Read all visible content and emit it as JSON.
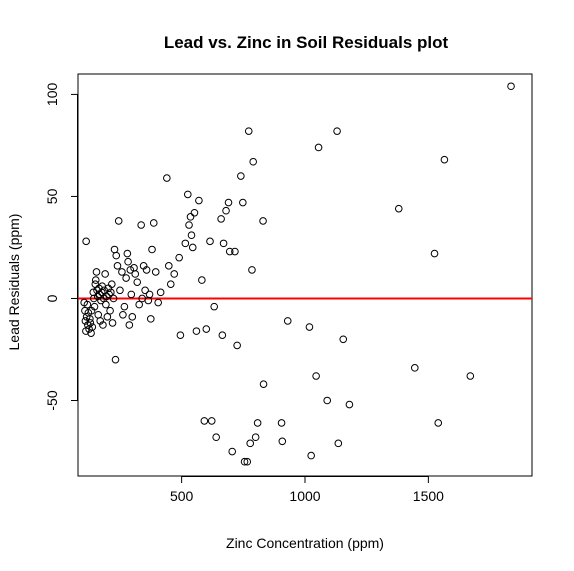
{
  "chart_data": {
    "type": "scatter",
    "title": "Lead vs. Zinc in Soil Residuals plot",
    "xlabel": "Zinc Concentration (ppm)",
    "ylabel": "Lead Residuals (ppm)",
    "xlim": [
      80,
      1920
    ],
    "ylim": [
      -87,
      110
    ],
    "xticks": [
      500,
      1000,
      1500
    ],
    "yticks": [
      -50,
      0,
      50,
      100
    ],
    "grid": false,
    "reference_line": {
      "y": 0,
      "color": "#ff0000"
    },
    "point_style": "open-circle",
    "points": [
      [
        113,
        28
      ],
      [
        105,
        -2
      ],
      [
        108,
        -6
      ],
      [
        110,
        -11
      ],
      [
        112,
        -16
      ],
      [
        115,
        -9
      ],
      [
        118,
        -3
      ],
      [
        120,
        -13
      ],
      [
        122,
        -7
      ],
      [
        125,
        -15
      ],
      [
        128,
        -10
      ],
      [
        130,
        -12
      ],
      [
        133,
        -17
      ],
      [
        135,
        -6
      ],
      [
        138,
        -14
      ],
      [
        142,
        3
      ],
      [
        144,
        0
      ],
      [
        147,
        -4
      ],
      [
        150,
        7
      ],
      [
        152,
        9
      ],
      [
        155,
        13
      ],
      [
        157,
        4
      ],
      [
        160,
        1
      ],
      [
        162,
        -8
      ],
      [
        165,
        5
      ],
      [
        168,
        2
      ],
      [
        170,
        -11
      ],
      [
        173,
        -1
      ],
      [
        176,
        3
      ],
      [
        178,
        6
      ],
      [
        181,
        -13
      ],
      [
        184,
        0
      ],
      [
        186,
        4
      ],
      [
        190,
        12
      ],
      [
        193,
        -3
      ],
      [
        196,
        1
      ],
      [
        199,
        -9
      ],
      [
        203,
        5
      ],
      [
        206,
        2
      ],
      [
        210,
        -6
      ],
      [
        213,
        3
      ],
      [
        217,
        7
      ],
      [
        220,
        -12
      ],
      [
        224,
        0
      ],
      [
        228,
        24
      ],
      [
        232,
        -30
      ],
      [
        235,
        21
      ],
      [
        240,
        16
      ],
      [
        245,
        38
      ],
      [
        250,
        4
      ],
      [
        258,
        13
      ],
      [
        262,
        -8
      ],
      [
        268,
        -4
      ],
      [
        275,
        10
      ],
      [
        280,
        22
      ],
      [
        283,
        18
      ],
      [
        288,
        -13
      ],
      [
        292,
        14
      ],
      [
        296,
        2
      ],
      [
        300,
        -9
      ],
      [
        307,
        15
      ],
      [
        312,
        12
      ],
      [
        320,
        8
      ],
      [
        328,
        -3
      ],
      [
        336,
        36
      ],
      [
        340,
        0
      ],
      [
        346,
        16
      ],
      [
        352,
        4
      ],
      [
        358,
        14
      ],
      [
        365,
        -1
      ],
      [
        370,
        2
      ],
      [
        375,
        -10
      ],
      [
        380,
        24
      ],
      [
        387,
        37
      ],
      [
        395,
        13
      ],
      [
        405,
        -2
      ],
      [
        415,
        3
      ],
      [
        440,
        59
      ],
      [
        448,
        16
      ],
      [
        456,
        7
      ],
      [
        470,
        12
      ],
      [
        490,
        20
      ],
      [
        495,
        -18
      ],
      [
        515,
        27
      ],
      [
        525,
        51
      ],
      [
        530,
        36
      ],
      [
        536,
        40
      ],
      [
        540,
        31
      ],
      [
        545,
        25
      ],
      [
        552,
        42
      ],
      [
        560,
        -16
      ],
      [
        570,
        48
      ],
      [
        582,
        9
      ],
      [
        592,
        -60
      ],
      [
        600,
        -15
      ],
      [
        615,
        28
      ],
      [
        622,
        -60
      ],
      [
        632,
        -4
      ],
      [
        640,
        -68
      ],
      [
        660,
        39
      ],
      [
        665,
        -18
      ],
      [
        670,
        27
      ],
      [
        680,
        43
      ],
      [
        690,
        47
      ],
      [
        695,
        23
      ],
      [
        705,
        -75
      ],
      [
        716,
        23
      ],
      [
        725,
        -23
      ],
      [
        740,
        60
      ],
      [
        748,
        47
      ],
      [
        755,
        -80
      ],
      [
        766,
        -80
      ],
      [
        772,
        82
      ],
      [
        778,
        -71
      ],
      [
        785,
        14
      ],
      [
        790,
        67
      ],
      [
        800,
        -68
      ],
      [
        808,
        -61
      ],
      [
        830,
        38
      ],
      [
        832,
        -42
      ],
      [
        905,
        -61
      ],
      [
        908,
        -70
      ],
      [
        930,
        -11
      ],
      [
        1018,
        -14
      ],
      [
        1025,
        -77
      ],
      [
        1045,
        -38
      ],
      [
        1055,
        74
      ],
      [
        1090,
        -50
      ],
      [
        1130,
        82
      ],
      [
        1135,
        -71
      ],
      [
        1155,
        -20
      ],
      [
        1180,
        -52
      ],
      [
        1380,
        44
      ],
      [
        1445,
        -34
      ],
      [
        1525,
        22
      ],
      [
        1540,
        -61
      ],
      [
        1565,
        68
      ],
      [
        1670,
        -38
      ],
      [
        1835,
        104
      ]
    ]
  }
}
